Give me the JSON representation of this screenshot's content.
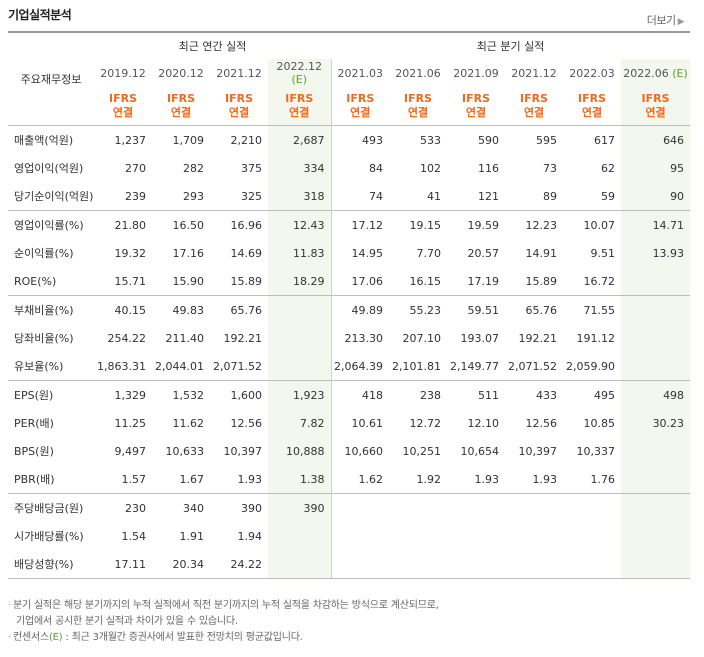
{
  "title": "기업실적분석",
  "more": "더보기",
  "row_header": "주요재무정보",
  "group_annual": "최근 연간 실적",
  "group_quarter": "최근 분기 실적",
  "periods": [
    "2019.12",
    "2020.12",
    "2021.12",
    "2022.12",
    "2021.03",
    "2021.06",
    "2021.09",
    "2021.12",
    "2022.03",
    "2022.06"
  ],
  "est_mark": "(E)",
  "ifrs": "IFRS",
  "consolidated": "연결",
  "rows": [
    {
      "label": "매출액(억원)",
      "values": [
        "1,237",
        "1,709",
        "2,210",
        "2,687",
        "493",
        "533",
        "590",
        "595",
        "617",
        "646"
      ]
    },
    {
      "label": "영업이익(억원)",
      "values": [
        "270",
        "282",
        "375",
        "334",
        "84",
        "102",
        "116",
        "73",
        "62",
        "95"
      ]
    },
    {
      "label": "당기순이익(억원)",
      "values": [
        "239",
        "293",
        "325",
        "318",
        "74",
        "41",
        "121",
        "89",
        "59",
        "90"
      ]
    },
    {
      "label": "영업이익률(%)",
      "values": [
        "21.80",
        "16.50",
        "16.96",
        "12.43",
        "17.12",
        "19.15",
        "19.59",
        "12.23",
        "10.07",
        "14.71"
      ]
    },
    {
      "label": "순이익률(%)",
      "values": [
        "19.32",
        "17.16",
        "14.69",
        "11.83",
        "14.95",
        "7.70",
        "20.57",
        "14.91",
        "9.51",
        "13.93"
      ]
    },
    {
      "label": "ROE(%)",
      "values": [
        "15.71",
        "15.90",
        "15.89",
        "18.29",
        "17.06",
        "16.15",
        "17.19",
        "15.89",
        "16.72",
        ""
      ]
    },
    {
      "label": "부채비율(%)",
      "values": [
        "40.15",
        "49.83",
        "65.76",
        "",
        "49.89",
        "55.23",
        "59.51",
        "65.76",
        "71.55",
        ""
      ]
    },
    {
      "label": "당좌비율(%)",
      "values": [
        "254.22",
        "211.40",
        "192.21",
        "",
        "213.30",
        "207.10",
        "193.07",
        "192.21",
        "191.12",
        ""
      ]
    },
    {
      "label": "유보율(%)",
      "values": [
        "1,863.31",
        "2,044.01",
        "2,071.52",
        "",
        "2,064.39",
        "2,101.81",
        "2,149.77",
        "2,071.52",
        "2,059.90",
        ""
      ]
    },
    {
      "label": "EPS(원)",
      "values": [
        "1,329",
        "1,532",
        "1,600",
        "1,923",
        "418",
        "238",
        "511",
        "433",
        "495",
        "498"
      ]
    },
    {
      "label": "PER(배)",
      "values": [
        "11.25",
        "11.62",
        "12.56",
        "7.82",
        "10.61",
        "12.72",
        "12.10",
        "12.56",
        "10.85",
        "30.23"
      ]
    },
    {
      "label": "BPS(원)",
      "values": [
        "9,497",
        "10,633",
        "10,397",
        "10,888",
        "10,660",
        "10,251",
        "10,654",
        "10,397",
        "10,337",
        ""
      ]
    },
    {
      "label": "PBR(배)",
      "values": [
        "1.57",
        "1.67",
        "1.93",
        "1.38",
        "1.62",
        "1.92",
        "1.93",
        "1.93",
        "1.76",
        ""
      ]
    },
    {
      "label": "주당배당금(원)",
      "values": [
        "230",
        "340",
        "390",
        "390",
        "",
        "",
        "",
        "",
        "",
        ""
      ]
    },
    {
      "label": "시가배당률(%)",
      "values": [
        "1.54",
        "1.91",
        "1.94",
        "",
        "",
        "",
        "",
        "",
        "",
        ""
      ]
    },
    {
      "label": "배당성향(%)",
      "values": [
        "17.11",
        "20.34",
        "24.22",
        "",
        "",
        "",
        "",
        "",
        "",
        ""
      ]
    }
  ],
  "separator_before_rows": [
    3,
    6,
    9,
    13
  ],
  "notes": {
    "line1": "분기 실적은 해당 분기까지의 누적 실적에서 직전 분기까지의 누적 실적을 차감하는 방식으로 계산되므로,",
    "line2": "기업에서 공시한 분기 실적과 차이가 있을 수 있습니다.",
    "line3_prefix": "컨센서스",
    "line3_mark": "(E)",
    "line3_suffix": ": 최근 3개월간 증권사에서 발표한 전망치의 평균값입니다."
  },
  "colors": {
    "ifrs": "#ee6a1c",
    "estimate_mark": "#5aa02c",
    "estimate_bg": "#f3f7ee"
  }
}
